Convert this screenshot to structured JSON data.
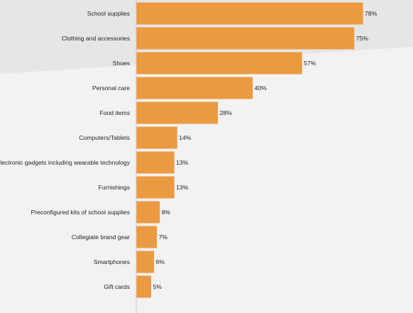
{
  "colors": {
    "bar": "#eb9a41",
    "background_light": "#f2f2f2",
    "background_dark": "#e6e6e6",
    "axis": "#c8c8c8",
    "text": "#222222"
  },
  "chart_data": {
    "type": "bar",
    "orientation": "horizontal",
    "categories": [
      "School supplies",
      "Clothing and accessories",
      "Shoes",
      "Personal care",
      "Food items",
      "Computers/Tablets",
      "Electronic gadgets including wearable technology",
      "Furnishings",
      "Preconfigured kits of school supplies",
      "Collegiate brand gear",
      "Smartphones",
      "Gift cards"
    ],
    "values": [
      78,
      75,
      57,
      40,
      28,
      14,
      13,
      13,
      8,
      7,
      6,
      5
    ],
    "value_labels": [
      "78%",
      "75%",
      "57%",
      "40%",
      "28%",
      "14%",
      "13%",
      "13%",
      "8%",
      "7%",
      "6%",
      "5%"
    ],
    "xlim": [
      0,
      100
    ],
    "grid": false,
    "legend": "none"
  }
}
